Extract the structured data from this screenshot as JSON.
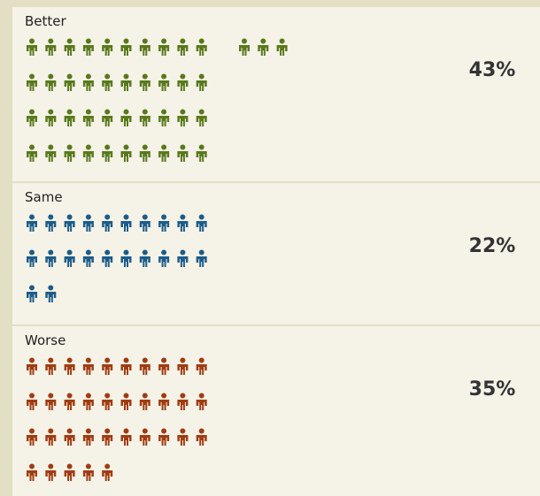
{
  "chart_data": {
    "type": "pictograph",
    "categories": [
      "Better",
      "Same",
      "Worse"
    ],
    "values": [
      43,
      22,
      35
    ],
    "value_labels": [
      "43%",
      "22%",
      "35%"
    ],
    "colors": [
      "#58791c",
      "#1c5c8a",
      "#a03c12"
    ]
  }
}
